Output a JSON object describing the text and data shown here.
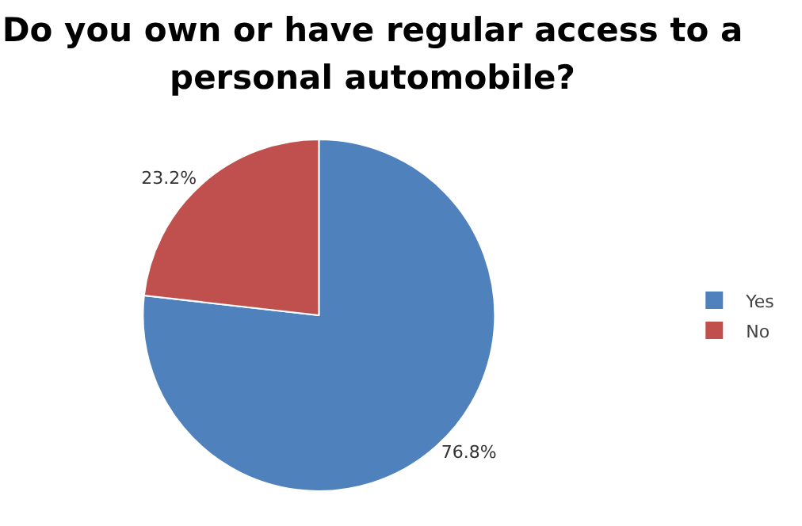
{
  "chart_data": {
    "type": "pie",
    "title": "Do you own or have regular access to a personal automobile?",
    "categories": [
      "Yes",
      "No"
    ],
    "values": [
      76.8,
      23.2
    ],
    "colors": [
      "#4f81bd",
      "#c0504d"
    ],
    "value_labels": [
      "76.8%",
      "23.2%"
    ],
    "legend": "right"
  }
}
